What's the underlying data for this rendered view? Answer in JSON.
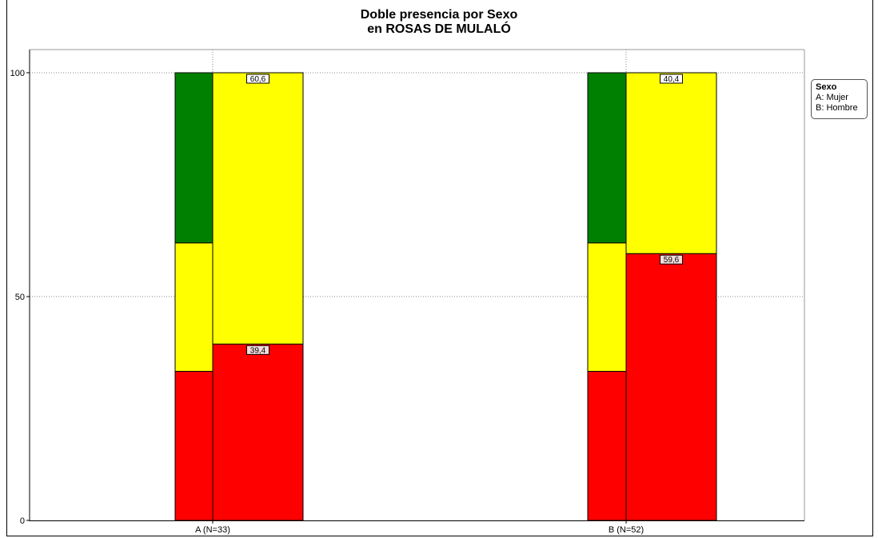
{
  "chart_data": {
    "type": "bar",
    "title": "Doble presencia por Sexo",
    "subtitle": "en ROSAS DE MULALÓ",
    "categories": [
      "A (N=33)",
      "B (N=52)"
    ],
    "ylim": [
      0,
      100
    ],
    "yticks": [
      0,
      50,
      100
    ],
    "grid": true,
    "legend": {
      "title": "Sexo",
      "items": [
        "A: Mujer",
        "B: Hombre"
      ],
      "placement": "top-right"
    },
    "reference_bars": {
      "description": "",
      "segments": [
        {
          "color": "#ff0000",
          "values": [
            33.3,
            33.3
          ]
        },
        {
          "color": "#ffff00",
          "values": [
            28.7,
            28.7
          ]
        },
        {
          "color": "#008000",
          "values": [
            38.0,
            38.0
          ]
        }
      ]
    },
    "series": [
      {
        "color": "#ff0000",
        "values": [
          39.4,
          59.6
        ],
        "labels": [
          "39,4",
          "59,6"
        ]
      },
      {
        "color": "#ffff00",
        "values": [
          60.6,
          40.4
        ],
        "labels": [
          "60,6",
          "40,4"
        ]
      }
    ]
  }
}
